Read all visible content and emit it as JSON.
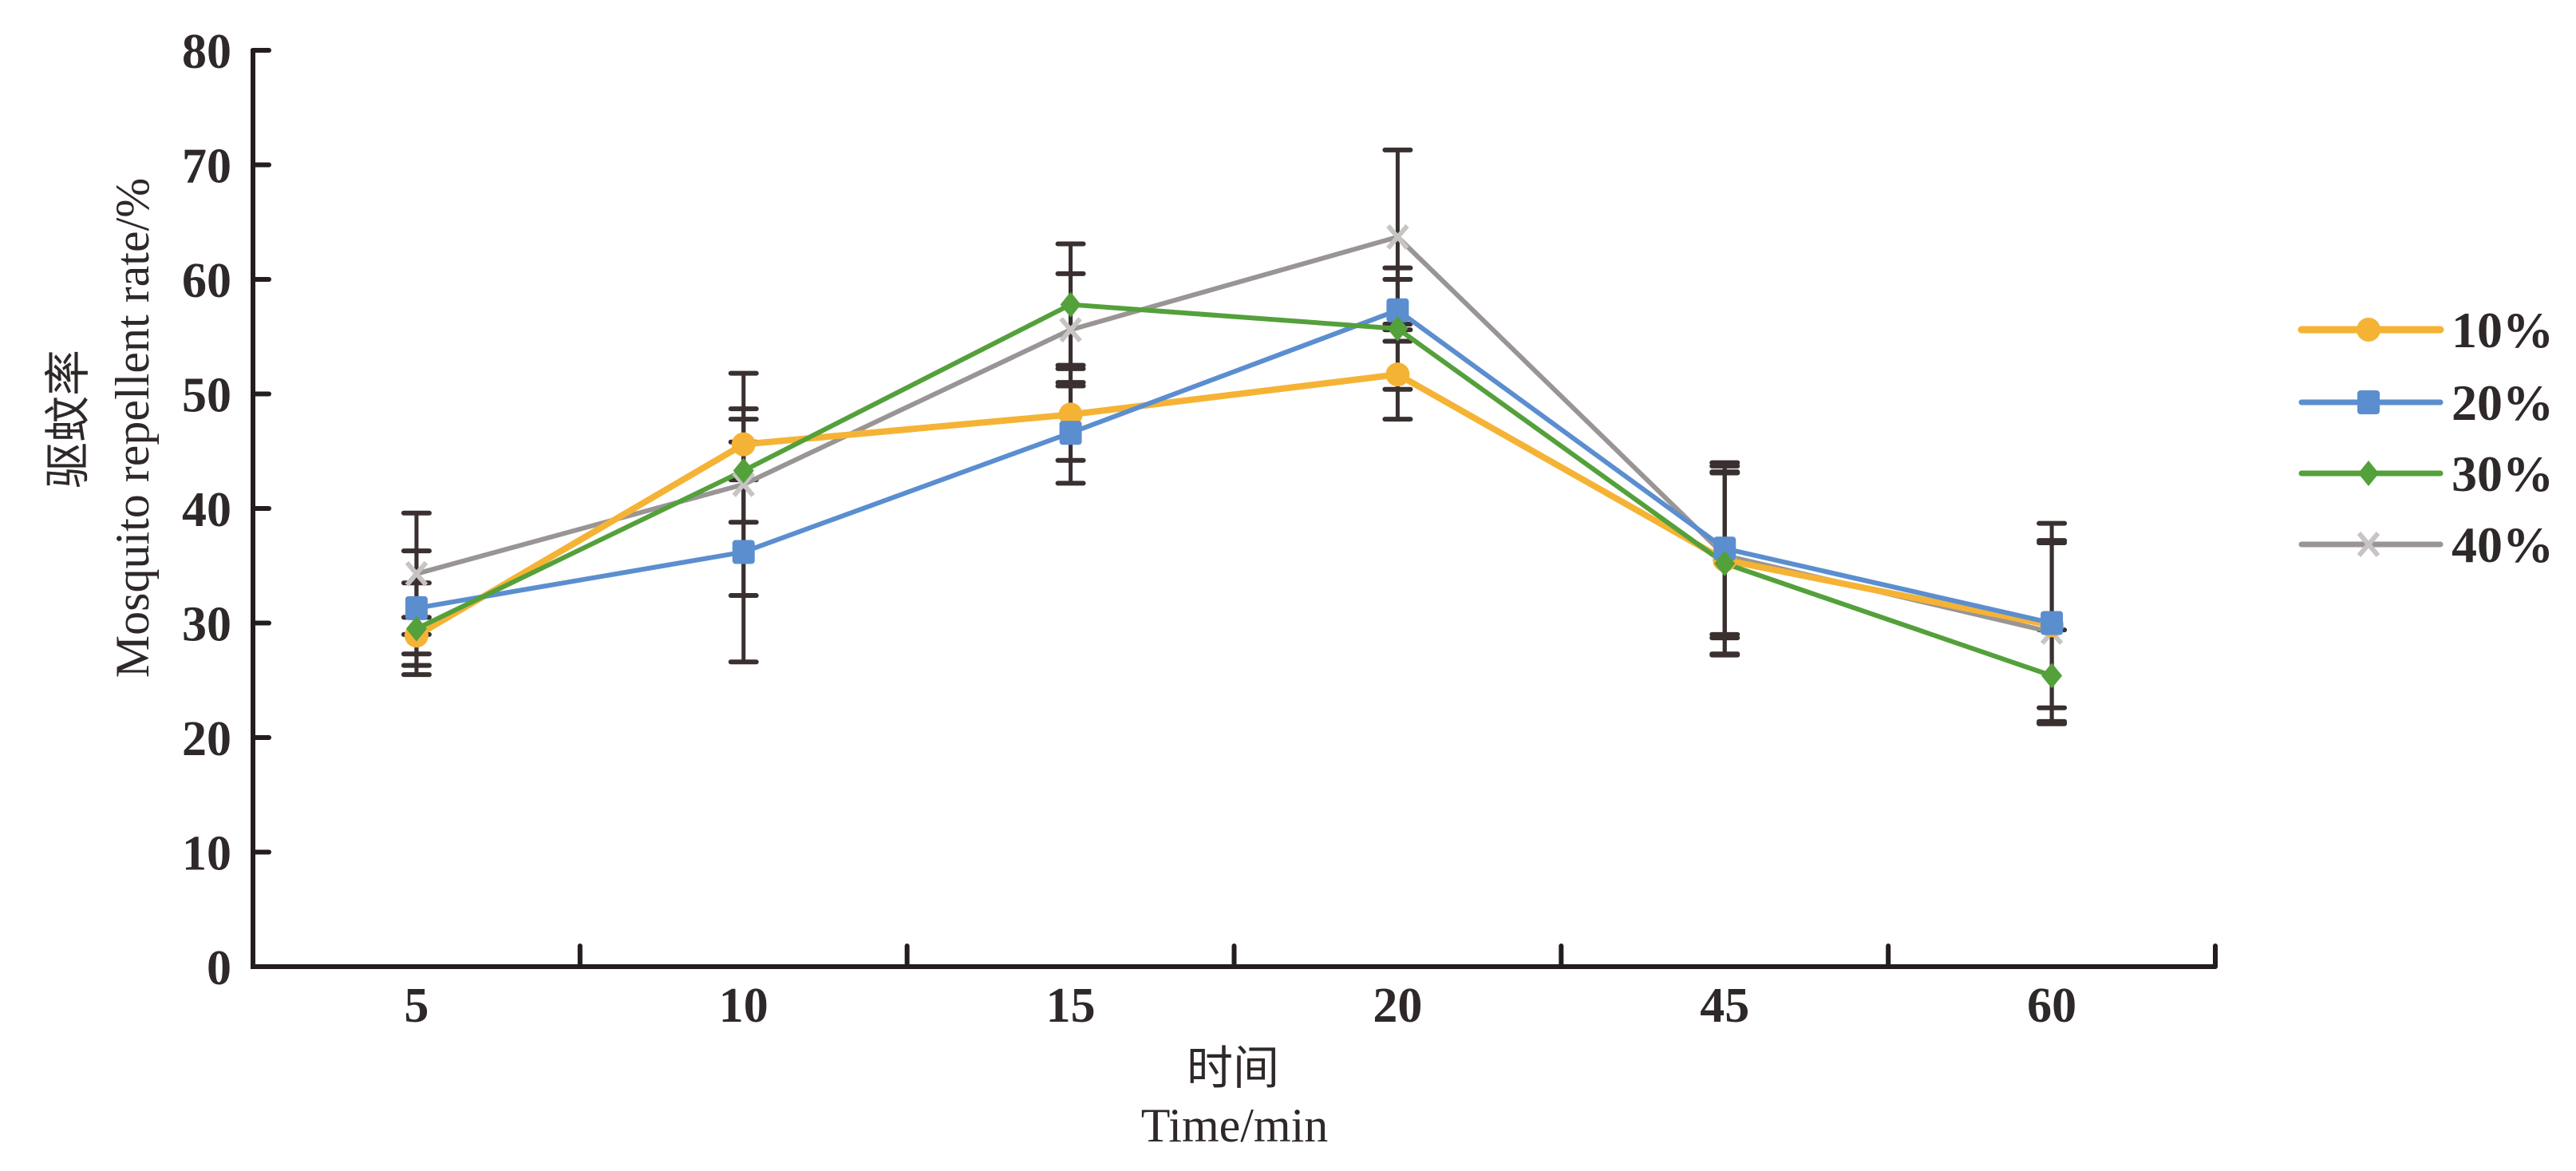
{
  "chart_data": {
    "type": "line",
    "title": "",
    "xlabel_cn": "时间",
    "xlabel": "Time/min",
    "ylabel_cn": "驱蚊率",
    "ylabel": "Mosquito repellent rate/%",
    "categories": [
      "5",
      "10",
      "15",
      "20",
      "45",
      "60"
    ],
    "ylim": [
      0,
      80
    ],
    "yticks": [
      0,
      10,
      20,
      30,
      40,
      50,
      60,
      70,
      80
    ],
    "grid": false,
    "legend_position": "right",
    "series": [
      {
        "name": "10%",
        "color": "#F5B335",
        "marker": "circle",
        "values": [
          28.9,
          45.6,
          48.2,
          51.7,
          35.5,
          29.8
        ],
        "error": [
          1.6,
          3.1,
          4.0,
          3.9,
          8.2,
          7.2
        ]
      },
      {
        "name": "20%",
        "color": "#5B8ECF",
        "marker": "square",
        "values": [
          31.3,
          36.2,
          46.6,
          57.3,
          36.5,
          30.0
        ],
        "error": [
          5.0,
          9.6,
          4.4,
          2.7,
          7.5,
          8.7
        ]
      },
      {
        "name": "30%",
        "color": "#54A03B",
        "marker": "diamond",
        "values": [
          29.5,
          43.3,
          57.8,
          55.7,
          35.2,
          25.4
        ],
        "error": [
          4.0,
          4.5,
          5.3,
          5.3,
          8.0,
          4.0
        ]
      },
      {
        "name": "40%",
        "color": "#9A9595",
        "marker": "x",
        "values": [
          34.3,
          42.1,
          55.6,
          63.7,
          35.9,
          29.2
        ],
        "error": [
          5.3,
          9.7,
          4.9,
          7.6,
          7.2,
          8.0
        ]
      }
    ]
  }
}
